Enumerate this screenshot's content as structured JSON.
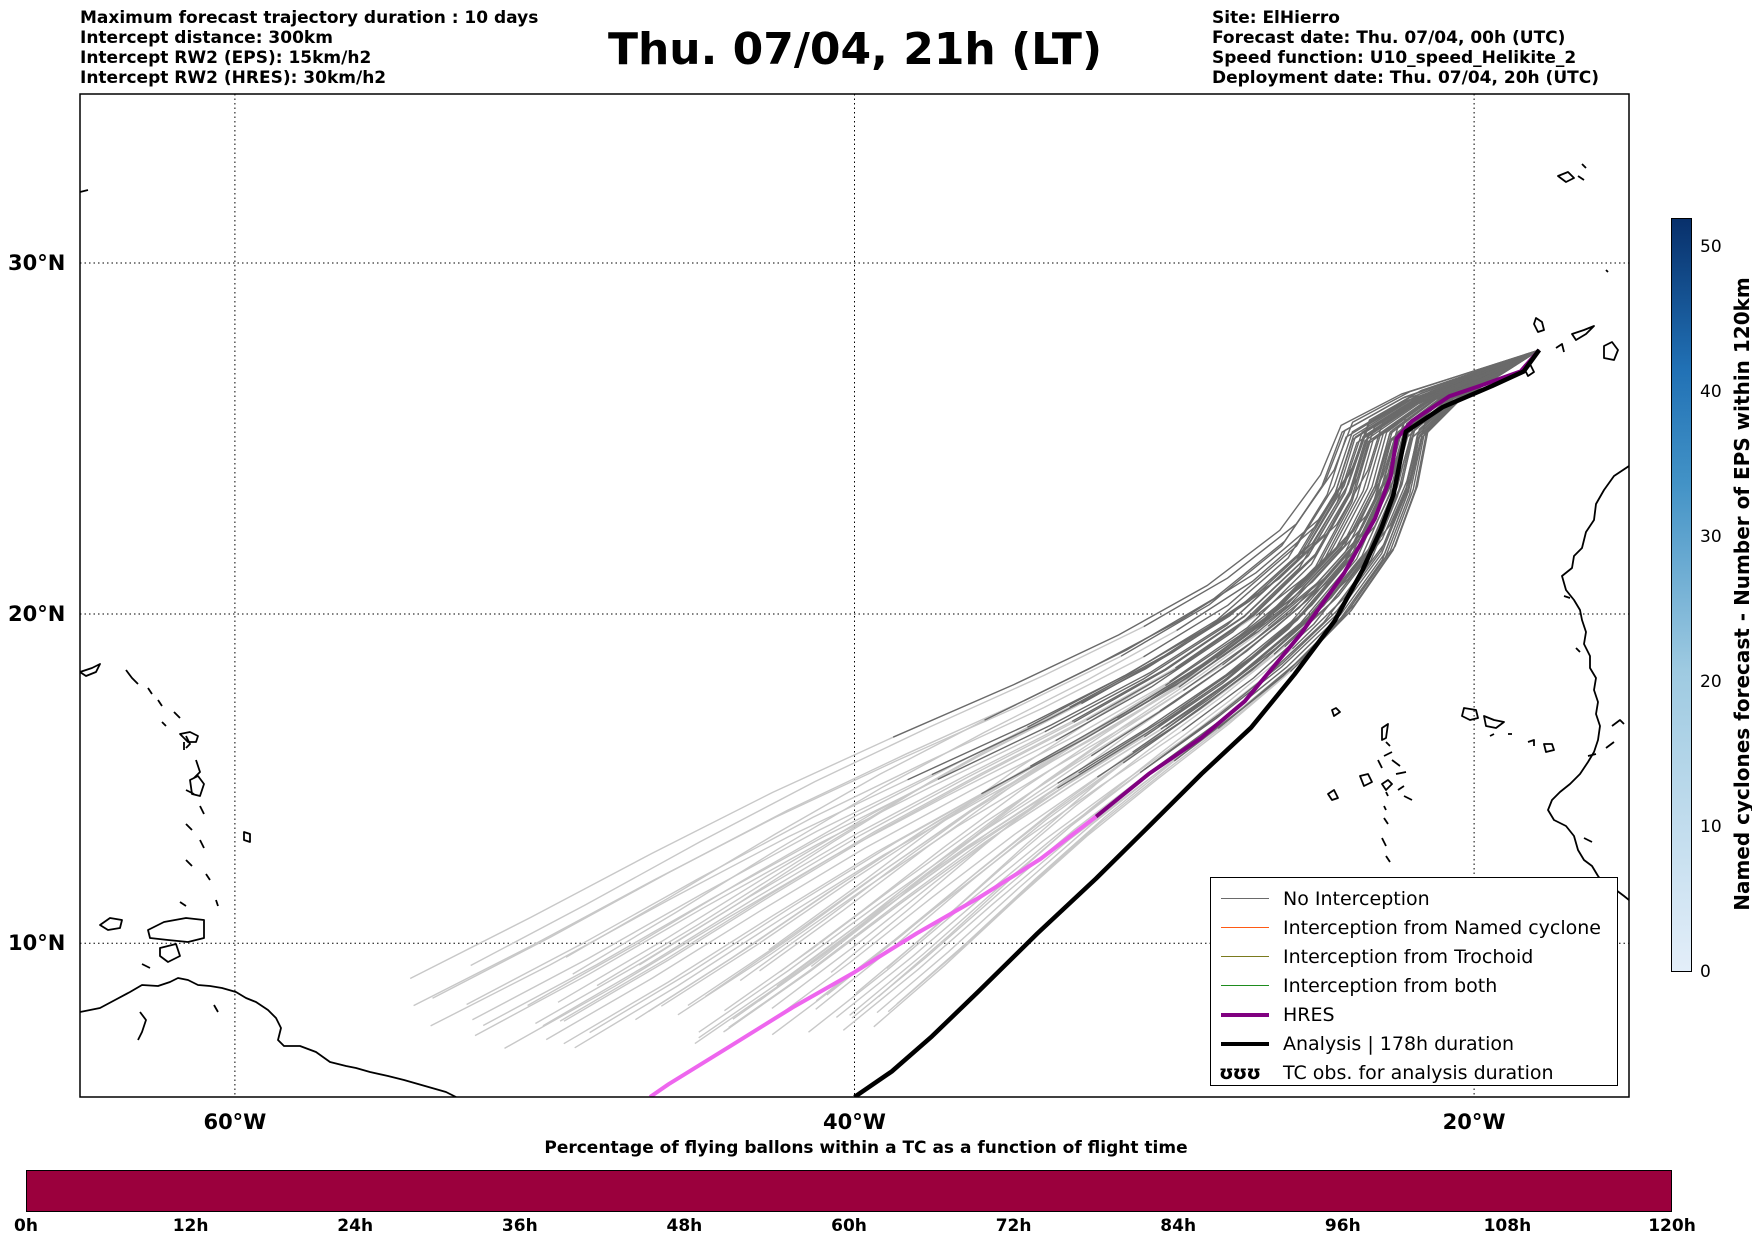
{
  "header_left": [
    "Maximum forecast trajectory duration : 10 days",
    "Intercept distance: 300km",
    "Intercept RW2 (EPS):  15km/h2",
    "Intercept RW2 (HRES): 30km/h2"
  ],
  "title": "Thu. 07/04, 21h (LT)",
  "header_right": [
    "Site: ElHierro",
    "Forecast date: Thu. 07/04, 00h (UTC)",
    "Speed function: U10_speed_Helikite_2",
    "Deployment date: Thu. 07/04, 20h (UTC)"
  ],
  "map": {
    "lon_range": [
      -65,
      -15
    ],
    "lat_range": [
      5.2,
      34.5
    ],
    "grid": true,
    "lon_ticks": [
      {
        "lon": -60,
        "label": "60°W"
      },
      {
        "lon": -40,
        "label": "40°W"
      },
      {
        "lon": -20,
        "label": "20°W"
      }
    ],
    "lat_ticks": [
      {
        "lat": 30,
        "label": "30°N"
      },
      {
        "lat": 20,
        "label": "20°N"
      },
      {
        "lat": 10,
        "label": "10°N"
      }
    ],
    "launch_site": {
      "lon": -17.9,
      "lat": 27.6
    }
  },
  "colors": {
    "no_interception": "#6a6a6a",
    "no_interception_light": "#c8c8c8",
    "named_cyclone": "#ff5a14",
    "trochoid": "#7a7a1e",
    "both": "#1e8c1e",
    "hres": "#800080",
    "hres_light": "#ee66ee",
    "analysis": "#000000",
    "bottom_bar": "#9b003d",
    "right_bar_low": "#e3eef9",
    "right_bar_high": "#08306b"
  },
  "tracks": {
    "analysis": [
      [
        -17.9,
        27.6
      ],
      [
        -18.4,
        27.0
      ],
      [
        -19.4,
        26.6
      ],
      [
        -21.0,
        26.0
      ],
      [
        -22.2,
        25.3
      ],
      [
        -22.4,
        24.4
      ],
      [
        -22.6,
        23.5
      ],
      [
        -23.0,
        22.5
      ],
      [
        -23.6,
        21.3
      ],
      [
        -24.5,
        19.8
      ],
      [
        -25.8,
        18.2
      ],
      [
        -27.2,
        16.6
      ],
      [
        -28.8,
        15.2
      ],
      [
        -30.5,
        13.6
      ],
      [
        -32.2,
        12.0
      ],
      [
        -34.1,
        10.3
      ],
      [
        -36.0,
        8.5
      ],
      [
        -37.5,
        7.1
      ],
      [
        -38.8,
        6.0
      ],
      [
        -40.0,
        5.2
      ]
    ],
    "hres": [
      [
        -17.9,
        27.6
      ],
      [
        -18.5,
        27.0
      ],
      [
        -19.8,
        26.6
      ],
      [
        -20.8,
        26.3
      ],
      [
        -22.0,
        25.6
      ],
      [
        -22.5,
        25.1
      ],
      [
        -22.7,
        24.0
      ],
      [
        -23.2,
        22.8
      ],
      [
        -24.2,
        21.2
      ],
      [
        -25.6,
        19.4
      ],
      [
        -27.4,
        17.4
      ],
      [
        -28.8,
        16.3
      ],
      [
        -30.5,
        15.2
      ],
      [
        -32.2,
        13.9
      ],
      [
        -34.0,
        12.6
      ],
      [
        -36.0,
        11.4
      ],
      [
        -38.0,
        10.3
      ],
      [
        -40.0,
        9.1
      ],
      [
        -42.0,
        8.0
      ],
      [
        -44.0,
        6.8
      ],
      [
        -46.0,
        5.6
      ],
      [
        -46.6,
        5.2
      ]
    ],
    "hres_split_index": 13
  },
  "legend": [
    {
      "label": "No Interception",
      "style": "no_interception"
    },
    {
      "label": "Interception from Named cyclone",
      "style": "named_cyclone"
    },
    {
      "label": "Interception from Trochoid",
      "style": "trochoid"
    },
    {
      "label": "Interception from both",
      "style": "both"
    },
    {
      "label": "HRES",
      "style": "hres"
    },
    {
      "label": "Analysis | 178h duration",
      "style": "analysis"
    },
    {
      "label": "TC obs. for analysis duration",
      "style": "tc",
      "symbol": "ʊʊʊ"
    }
  ],
  "bottom_colorbar": {
    "label": "Percentage of flying ballons within a TC as a function of flight time",
    "ticks": [
      "0h",
      "12h",
      "24h",
      "36h",
      "48h",
      "60h",
      "72h",
      "84h",
      "96h",
      "108h",
      "120h"
    ]
  },
  "right_colorbar": {
    "label": "Named cyclones forecast - Number of EPS within 120km",
    "ticks": [
      "0",
      "10",
      "20",
      "30",
      "40",
      "50"
    ],
    "max": 52
  }
}
